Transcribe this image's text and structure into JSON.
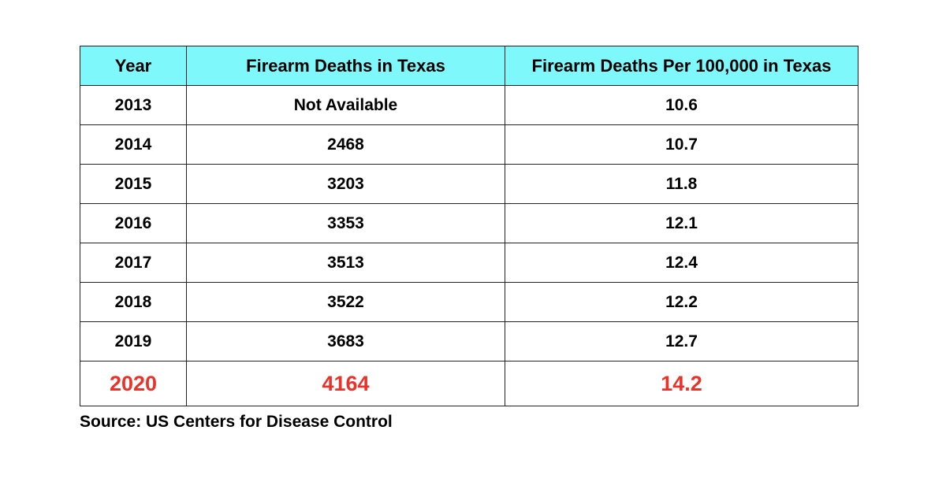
{
  "table": {
    "headers": [
      "Year",
      "Firearm Deaths in Texas",
      "Firearm Deaths Per 100,000 in Texas"
    ],
    "header_bg": "#7ff8fc",
    "rows": [
      [
        "2013",
        "Not Available",
        "10.6"
      ],
      [
        "2014",
        "2468",
        "10.7"
      ],
      [
        "2015",
        "3203",
        "11.8"
      ],
      [
        "2016",
        "3353",
        "12.1"
      ],
      [
        "2017",
        "3513",
        "12.4"
      ],
      [
        "2018",
        "3522",
        "12.2"
      ],
      [
        "2019",
        "3683",
        "12.7"
      ],
      [
        "2020",
        "4164",
        "14.2"
      ]
    ],
    "highlight_row_color": "#e8332a"
  },
  "source": "Source: US Centers for Disease Control"
}
